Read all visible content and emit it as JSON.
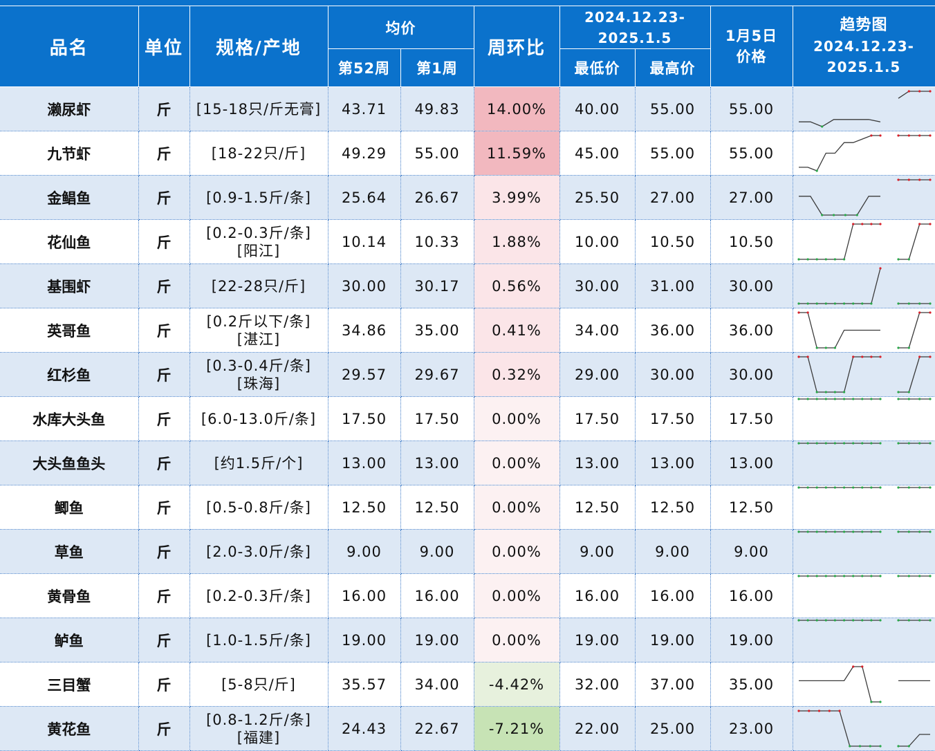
{
  "header": {
    "name": "品名",
    "unit": "单位",
    "spec": "规格/产地",
    "avg": "均价",
    "week52": "第52周",
    "week1": "第1周",
    "wow": "周环比",
    "range_line1": "2024.12.23-",
    "range_line2": "2025.1.5",
    "low": "最低价",
    "high": "最高价",
    "jan5_line1": "1月5日",
    "jan5_line2": "价格",
    "trend_line1": "趋势图",
    "trend_line2": "2024.12.23-",
    "trend_line3": "2025.1.5"
  },
  "colors": {
    "header_bg": "#0b72cc",
    "row_alt_bg": "#dde8f5",
    "low_text": "#21a84a",
    "high_text": "#e0232a",
    "up_strong": "#f2b8bf",
    "up_light": "#fbe5e8",
    "zero": "#fcf1f2",
    "down_light": "#e7f1dd",
    "down_strong": "#c7e3b5",
    "spark_line": "#3a3a3a",
    "spark_high_marker": "#d8202a",
    "spark_low_marker": "#2aa84a"
  },
  "rows": [
    {
      "name": "濑尿虾",
      "unit": "斤",
      "spec1": "[15-18只/斤无膏]",
      "spec2": "",
      "avg52": "43.71",
      "avg1": "49.83",
      "wow": "14.00%",
      "low": "40.00",
      "high": "55.00",
      "jan5": "55.00",
      "wow_value": 14.0,
      "trend1": [
        42,
        42,
        40,
        43,
        43,
        43,
        43,
        42
      ],
      "trend2": [
        52,
        55,
        55,
        55
      ]
    },
    {
      "name": "九节虾",
      "unit": "斤",
      "spec1": "[18-22只/斤]",
      "spec2": "",
      "avg52": "49.29",
      "avg1": "55.00",
      "wow": "11.59%",
      "low": "45.00",
      "high": "55.00",
      "jan5": "55.00",
      "wow_value": 11.59,
      "trend1": [
        46,
        46,
        45,
        50,
        50,
        53,
        53,
        54,
        55,
        55
      ],
      "trend2": [
        55,
        55,
        55,
        55
      ]
    },
    {
      "name": "金鲳鱼",
      "unit": "斤",
      "spec1": "[0.9-1.5斤/条]",
      "spec2": "",
      "avg52": "25.64",
      "avg1": "26.67",
      "wow": "3.99%",
      "low": "25.50",
      "high": "27.00",
      "jan5": "27.00",
      "wow_value": 3.99,
      "trend1": [
        26.3,
        26.3,
        25.5,
        25.5,
        25.5,
        25.5,
        26.3,
        26.3
      ],
      "trend2": [
        27,
        27,
        27,
        27
      ]
    },
    {
      "name": "花仙鱼",
      "unit": "斤",
      "spec1": "[0.2-0.3斤/条]",
      "spec2": "[阳江]",
      "avg52": "10.14",
      "avg1": "10.33",
      "wow": "1.88%",
      "low": "10.00",
      "high": "10.50",
      "jan5": "10.50",
      "wow_value": 1.88,
      "trend1": [
        10,
        10,
        10,
        10,
        10,
        10,
        10.5,
        10.5,
        10.5,
        10.5
      ],
      "trend2": [
        10,
        10,
        10.5,
        10.5
      ]
    },
    {
      "name": "基围虾",
      "unit": "斤",
      "spec1": "[22-28只/斤]",
      "spec2": "",
      "avg52": "30.00",
      "avg1": "30.17",
      "wow": "0.56%",
      "low": "30.00",
      "high": "31.00",
      "jan5": "30.00",
      "wow_value": 0.56,
      "trend1": [
        30,
        30,
        30,
        30,
        30,
        30,
        30,
        30,
        30,
        31
      ],
      "trend2": [
        30,
        30,
        30,
        30
      ]
    },
    {
      "name": "英哥鱼",
      "unit": "斤",
      "spec1": "[0.2斤以下/条]",
      "spec2": "[湛江]",
      "avg52": "34.86",
      "avg1": "35.00",
      "wow": "0.41%",
      "low": "34.00",
      "high": "36.00",
      "jan5": "36.00",
      "wow_value": 0.41,
      "trend1": [
        36,
        36,
        34,
        34,
        34,
        35,
        35,
        35,
        35,
        35
      ],
      "trend2": [
        34,
        34,
        36,
        36
      ]
    },
    {
      "name": "红杉鱼",
      "unit": "斤",
      "spec1": "[0.3-0.4斤/条]",
      "spec2": "[珠海]",
      "avg52": "29.57",
      "avg1": "29.67",
      "wow": "0.32%",
      "low": "29.00",
      "high": "30.00",
      "jan5": "30.00",
      "wow_value": 0.32,
      "trend1": [
        30,
        30,
        29,
        29,
        29,
        29,
        30,
        30,
        30,
        30
      ],
      "trend2": [
        29,
        29,
        30,
        30
      ]
    },
    {
      "name": "水库大头鱼",
      "unit": "斤",
      "spec1": "[6.0-13.0斤/条]",
      "spec2": "",
      "avg52": "17.50",
      "avg1": "17.50",
      "wow": "0.00%",
      "low": "17.50",
      "high": "17.50",
      "jan5": "17.50",
      "wow_value": 0.0,
      "trend1": [
        17.5,
        17.5,
        17.5,
        17.5,
        17.5,
        17.5,
        17.5,
        17.5,
        17.5,
        17.5
      ],
      "trend2": [
        17.5,
        17.5,
        17.5,
        17.5
      ]
    },
    {
      "name": "大头鱼鱼头",
      "unit": "斤",
      "spec1": "[约1.5斤/个]",
      "spec2": "",
      "avg52": "13.00",
      "avg1": "13.00",
      "wow": "0.00%",
      "low": "13.00",
      "high": "13.00",
      "jan5": "13.00",
      "wow_value": 0.0,
      "trend1": [
        13,
        13,
        13,
        13,
        13,
        13,
        13,
        13,
        13,
        13
      ],
      "trend2": [
        13,
        13,
        13,
        13
      ]
    },
    {
      "name": "鲫鱼",
      "unit": "斤",
      "spec1": "[0.5-0.8斤/条]",
      "spec2": "",
      "avg52": "12.50",
      "avg1": "12.50",
      "wow": "0.00%",
      "low": "12.50",
      "high": "12.50",
      "jan5": "12.50",
      "wow_value": 0.0,
      "trend1": [
        12.5,
        12.5,
        12.5,
        12.5,
        12.5,
        12.5,
        12.5,
        12.5,
        12.5,
        12.5
      ],
      "trend2": [
        12.5,
        12.5,
        12.5,
        12.5
      ]
    },
    {
      "name": "草鱼",
      "unit": "斤",
      "spec1": "[2.0-3.0斤/条]",
      "spec2": "",
      "avg52": "9.00",
      "avg1": "9.00",
      "wow": "0.00%",
      "low": "9.00",
      "high": "9.00",
      "jan5": "9.00",
      "wow_value": 0.0,
      "trend1": [
        9,
        9,
        9,
        9,
        9,
        9,
        9,
        9,
        9,
        9
      ],
      "trend2": [
        9,
        9,
        9,
        9
      ]
    },
    {
      "name": "黄骨鱼",
      "unit": "斤",
      "spec1": "[0.2-0.3斤/条]",
      "spec2": "",
      "avg52": "16.00",
      "avg1": "16.00",
      "wow": "0.00%",
      "low": "16.00",
      "high": "16.00",
      "jan5": "16.00",
      "wow_value": 0.0,
      "trend1": [
        16,
        16,
        16,
        16,
        16,
        16,
        16,
        16,
        16,
        16
      ],
      "trend2": [
        16,
        16,
        16,
        16
      ]
    },
    {
      "name": "鲈鱼",
      "unit": "斤",
      "spec1": "[1.0-1.5斤/条]",
      "spec2": "",
      "avg52": "19.00",
      "avg1": "19.00",
      "wow": "0.00%",
      "low": "19.00",
      "high": "19.00",
      "jan5": "19.00",
      "wow_value": 0.0,
      "trend1": [
        19,
        19,
        19,
        19,
        19,
        19,
        19,
        19,
        19,
        19
      ],
      "trend2": [
        19,
        19,
        19,
        19
      ]
    },
    {
      "name": "三目蟹",
      "unit": "斤",
      "spec1": "[5-8只/斤]",
      "spec2": "",
      "avg52": "35.57",
      "avg1": "34.00",
      "wow": "-4.42%",
      "low": "32.00",
      "high": "37.00",
      "jan5": "35.00",
      "wow_value": -4.42,
      "trend1": [
        35,
        35,
        35,
        35,
        35,
        35,
        37,
        37,
        32,
        32
      ],
      "trend2": [
        35,
        35,
        35,
        35
      ]
    },
    {
      "name": "黄花鱼",
      "unit": "斤",
      "spec1": "[0.8-1.2斤/条]",
      "spec2": "[福建]",
      "avg52": "24.43",
      "avg1": "22.67",
      "wow": "-7.21%",
      "low": "22.00",
      "high": "25.00",
      "jan5": "23.00",
      "wow_value": -7.21,
      "trend1": [
        25,
        25,
        25,
        25,
        25,
        22,
        22,
        22,
        22
      ],
      "trend2": [
        22,
        22,
        23,
        23
      ]
    }
  ]
}
